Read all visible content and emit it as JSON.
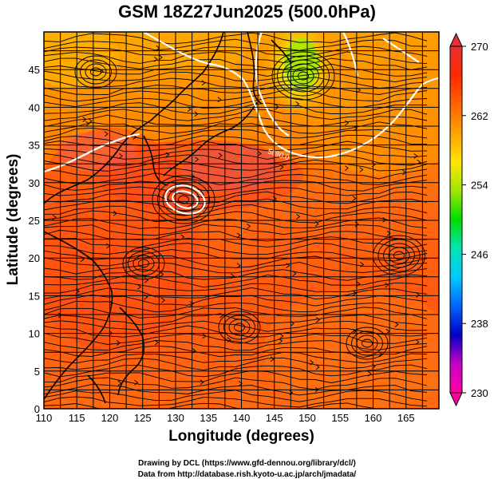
{
  "title": "GSM 18Z27Jun2025 (500.0hPa)",
  "chart_data": {
    "type": "heatmap",
    "title": "GSM 18Z27Jun2025 (500.0hPa)",
    "xlabel": "Longitude (degrees)",
    "ylabel": "Latitude  (degrees)",
    "xlim": [
      110,
      170
    ],
    "ylim": [
      0,
      50
    ],
    "x_ticks": [
      "110",
      "115",
      "120",
      "125",
      "130",
      "135",
      "140",
      "145",
      "150",
      "155",
      "160",
      "165"
    ],
    "y_ticks": [
      "0",
      "5",
      "10",
      "15",
      "20",
      "25",
      "30",
      "35",
      "40",
      "45"
    ],
    "grid": true,
    "overlay": "streamlines",
    "contour_label": "5880.0",
    "colorbar": {
      "min": 230,
      "max": 270,
      "ticks": [
        "270",
        "262",
        "254",
        "246",
        "238",
        "230"
      ],
      "colors": [
        "#ff00a0",
        "#c800c8",
        "#0000c8",
        "#0064ff",
        "#00c8ff",
        "#00e6b4",
        "#00dc00",
        "#a0e600",
        "#ffe600",
        "#ffa000",
        "#ff6400",
        "#ff2800",
        "#e63232"
      ]
    }
  },
  "credit": {
    "line1": "Drawing by DCL (https://www.gfd-dennou.org/library/dcl/)",
    "line2": "Data from http://database.rish.kyoto-u.ac.jp/arch/jmadata/"
  }
}
